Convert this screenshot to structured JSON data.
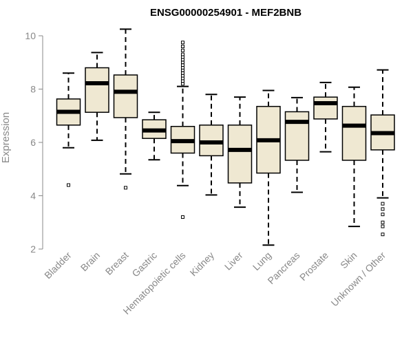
{
  "chart_data": {
    "type": "boxplot",
    "title": "ENSG00000254901 - MEF2BNB",
    "xlabel": "",
    "ylabel": "Expression",
    "ylim": [
      2,
      10.3
    ],
    "yticks": [
      2,
      4,
      6,
      8,
      10
    ],
    "colors": {
      "box_fill": "#efe8d2",
      "box_stroke": "#000000",
      "axis": "#888888"
    },
    "categories": [
      "Bladder",
      "Brain",
      "Breast",
      "Gastric",
      "Hematopoietic cells",
      "Kidney",
      "Liver",
      "Lung",
      "Pancreas",
      "Prostate",
      "Skin",
      "Unknown / Other"
    ],
    "boxes": [
      {
        "name": "Bladder",
        "min": 5.8,
        "q1": 6.65,
        "median": 7.15,
        "q3": 7.63,
        "max": 8.6,
        "outliers": [
          4.4
        ]
      },
      {
        "name": "Brain",
        "min": 6.08,
        "q1": 7.13,
        "median": 8.22,
        "q3": 8.8,
        "max": 9.37,
        "outliers": []
      },
      {
        "name": "Breast",
        "min": 4.82,
        "q1": 6.93,
        "median": 7.9,
        "q3": 8.53,
        "max": 10.25,
        "outliers": [
          4.3
        ]
      },
      {
        "name": "Gastric",
        "min": 5.35,
        "q1": 6.15,
        "median": 6.45,
        "q3": 6.85,
        "max": 7.13,
        "outliers": []
      },
      {
        "name": "Hematopoietic cells",
        "min": 4.38,
        "q1": 5.6,
        "median": 6.05,
        "q3": 6.6,
        "max": 8.1,
        "outliers": [
          3.2,
          8.2,
          8.3,
          8.4,
          8.5,
          8.6,
          8.7,
          8.8,
          8.9,
          9.0,
          9.1,
          9.2,
          9.3,
          9.45,
          9.6,
          9.75
        ]
      },
      {
        "name": "Kidney",
        "min": 4.03,
        "q1": 5.5,
        "median": 6.0,
        "q3": 6.65,
        "max": 7.8,
        "outliers": []
      },
      {
        "name": "Liver",
        "min": 3.57,
        "q1": 4.48,
        "median": 5.72,
        "q3": 6.65,
        "max": 7.7,
        "outliers": []
      },
      {
        "name": "Lung",
        "min": 2.15,
        "q1": 4.85,
        "median": 6.08,
        "q3": 7.35,
        "max": 7.95,
        "outliers": []
      },
      {
        "name": "Pancreas",
        "min": 4.13,
        "q1": 5.33,
        "median": 6.77,
        "q3": 7.15,
        "max": 7.68,
        "outliers": []
      },
      {
        "name": "Prostate",
        "min": 5.65,
        "q1": 6.88,
        "median": 7.47,
        "q3": 7.7,
        "max": 8.25,
        "outliers": []
      },
      {
        "name": "Skin",
        "min": 2.85,
        "q1": 5.33,
        "median": 6.63,
        "q3": 7.35,
        "max": 8.07,
        "outliers": []
      },
      {
        "name": "Unknown / Other",
        "min": 3.92,
        "q1": 5.72,
        "median": 6.35,
        "q3": 7.03,
        "max": 8.72,
        "outliers": [
          2.55,
          2.85,
          3.0,
          3.3,
          3.5,
          3.7
        ]
      }
    ]
  }
}
